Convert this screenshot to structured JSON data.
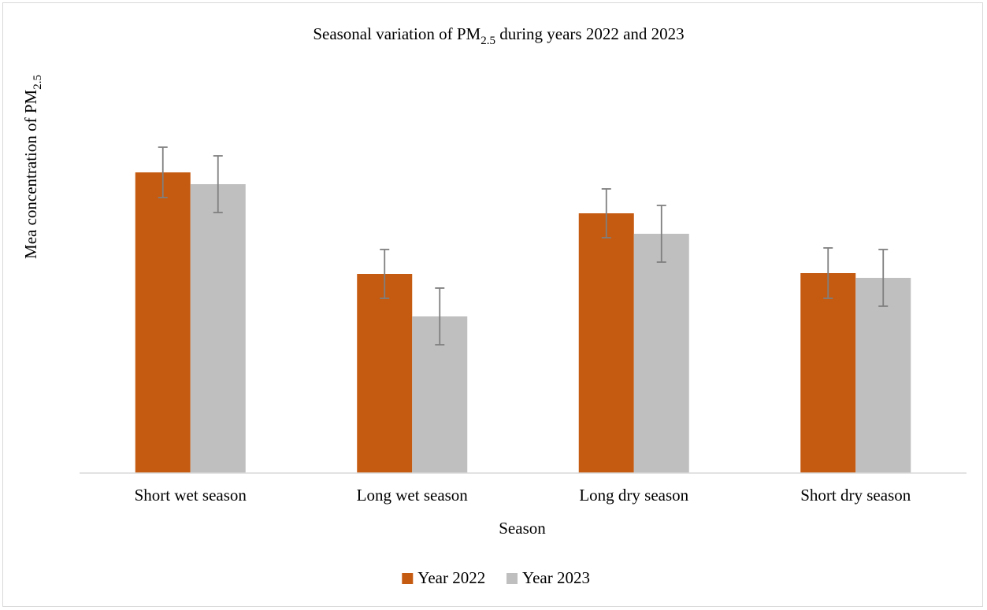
{
  "chart_data": {
    "type": "bar",
    "title": {
      "prefix": "Seasonal variation of PM",
      "subscript": "2.5",
      "suffix": " during years 2022 and 2023"
    },
    "xlabel": "Season",
    "ylabel": {
      "prefix": "Mea concentration of PM",
      "subscript": "2.5"
    },
    "categories": [
      "Short wet season",
      "Long wet season",
      "Long dry season",
      "Short dry season"
    ],
    "series": [
      {
        "name": "Year 2022",
        "color": "#c55a11",
        "values": [
          38.2,
          25.3,
          33.0,
          25.4
        ],
        "error": [
          3.2,
          3.1,
          3.1,
          3.2
        ]
      },
      {
        "name": "Year 2023",
        "color": "#bfbfbf",
        "values": [
          36.7,
          19.9,
          30.4,
          24.8
        ],
        "error": [
          3.6,
          3.6,
          3.6,
          3.6
        ]
      }
    ],
    "ylim": [
      0,
      50
    ],
    "y_axis_visible": false,
    "grid": false,
    "legend_position": "bottom",
    "error_bar_color": "#7f7f7f",
    "axis_color": "#d9d9d9"
  }
}
